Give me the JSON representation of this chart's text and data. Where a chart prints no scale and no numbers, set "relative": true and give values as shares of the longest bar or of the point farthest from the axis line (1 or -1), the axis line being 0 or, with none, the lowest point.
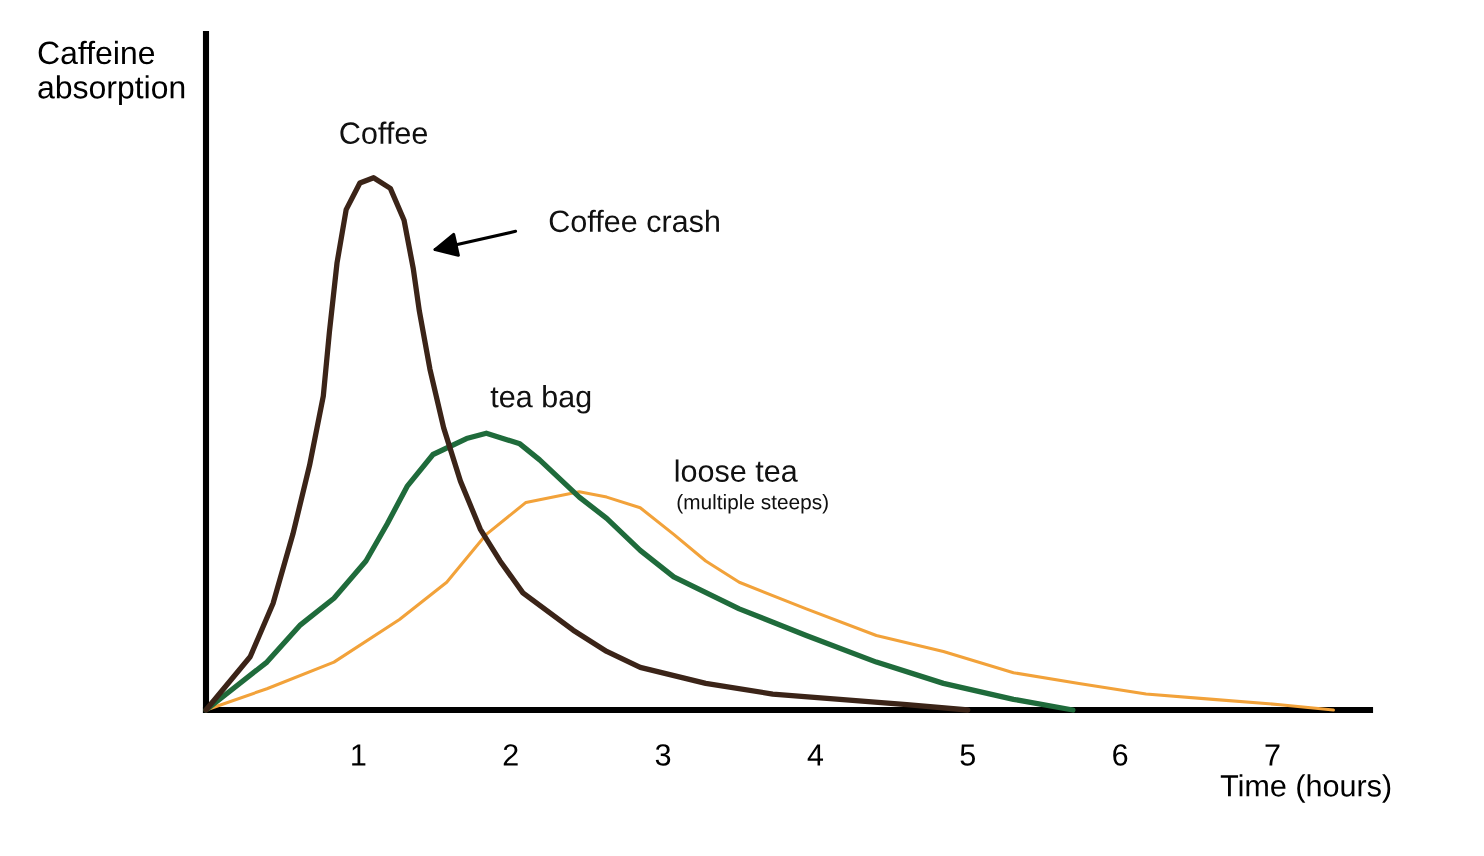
{
  "chart_data": {
    "type": "line",
    "relative": true,
    "ylabel": "Caffeine absorption",
    "xlabel": "Time (hours)",
    "xlim": [
      0,
      7.64
    ],
    "xticks": [
      1,
      2,
      3,
      4,
      5,
      6,
      7
    ],
    "tick_labels": "x",
    "series": [
      {
        "name": "Coffee",
        "color": "#3b2418",
        "x": [
          0,
          0.29,
          0.44,
          0.57,
          0.68,
          0.77,
          0.81,
          0.86,
          0.92,
          1.01,
          1.1,
          1.21,
          1.3,
          1.36,
          1.4,
          1.47,
          1.56,
          1.67,
          1.8,
          1.93,
          2.08,
          2.41,
          2.63,
          2.85,
          3.28,
          3.72,
          4.16,
          4.6,
          5.0
        ],
        "values": [
          0,
          0.1,
          0.2,
          0.33,
          0.46,
          0.59,
          0.71,
          0.84,
          0.94,
          0.99,
          1,
          0.98,
          0.92,
          0.83,
          0.75,
          0.64,
          0.53,
          0.43,
          0.34,
          0.28,
          0.22,
          0.15,
          0.11,
          0.08,
          0.05,
          0.03,
          0.02,
          0.01,
          0
        ]
      },
      {
        "name": "tea bag",
        "color": "#1f6b3b",
        "x": [
          0,
          0.4,
          0.62,
          0.84,
          1.05,
          1.19,
          1.32,
          1.49,
          1.71,
          1.84,
          2.06,
          2.19,
          2.45,
          2.63,
          2.85,
          3.07,
          3.5,
          3.94,
          4.4,
          4.84,
          5.3,
          5.69
        ],
        "values": [
          0,
          0.09,
          0.16,
          0.21,
          0.28,
          0.35,
          0.42,
          0.48,
          0.51,
          0.52,
          0.5,
          0.47,
          0.4,
          0.36,
          0.3,
          0.25,
          0.19,
          0.14,
          0.09,
          0.05,
          0.02,
          0
        ]
      },
      {
        "name": "loose tea",
        "color": "#f2a23a",
        "x": [
          0,
          0.4,
          0.84,
          1.27,
          1.58,
          1.84,
          2.1,
          2.45,
          2.63,
          2.85,
          3.07,
          3.28,
          3.5,
          3.94,
          4.4,
          4.84,
          5.3,
          5.73,
          6.17,
          6.61,
          7.05,
          7.4
        ],
        "values": [
          0,
          0.04,
          0.09,
          0.17,
          0.24,
          0.33,
          0.39,
          0.41,
          0.4,
          0.38,
          0.33,
          0.28,
          0.24,
          0.19,
          0.14,
          0.11,
          0.07,
          0.05,
          0.03,
          0.02,
          0.01,
          0
        ]
      }
    ],
    "annotations": [
      "Coffee crash",
      "(multiple steeps)"
    ]
  }
}
